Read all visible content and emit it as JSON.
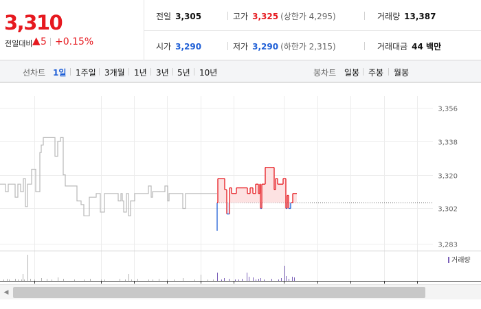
{
  "quote": {
    "price": "3,310",
    "change_label": "전일대비",
    "change_arrow": "▲",
    "change_value": "5",
    "change_pct": "+0.15%",
    "prev_close": {
      "label": "전일",
      "value": "3,305"
    },
    "high": {
      "label": "고가",
      "value": "3,325",
      "sub": "(상한가 4,295)"
    },
    "volume": {
      "label": "거래량",
      "value": "13,387"
    },
    "open": {
      "label": "시가",
      "value": "3,290"
    },
    "low": {
      "label": "저가",
      "value": "3,290",
      "sub": "(하한가 2,315)"
    },
    "amount": {
      "label": "거래대금",
      "value": "44 백만"
    }
  },
  "tabs": {
    "line_chart_label": "선차트",
    "line_periods": [
      "1일",
      "1주일",
      "3개월",
      "1년",
      "3년",
      "5년",
      "10년"
    ],
    "active": "1일",
    "candle_chart_label": "봉차트",
    "candle_periods": [
      "일봉",
      "주봉",
      "월봉"
    ]
  },
  "chart_data": {
    "type": "line",
    "y_ticks": [
      "3,356",
      "3,338",
      "3,320",
      "3,302",
      "3,283"
    ],
    "y_tick_values": [
      3356,
      3338,
      3320,
      3302,
      3283
    ],
    "ylim": [
      3281,
      3362
    ],
    "baseline": 3305,
    "volume_legend": "거래량",
    "colors": {
      "up": "#e6191f",
      "down": "#1f5fd6",
      "prev": "#b8b8b8",
      "up_fill": "#fde2e2",
      "down_fill": "#dde8fb"
    },
    "prev_day_series": [
      [
        0,
        3315
      ],
      [
        8,
        3315
      ],
      [
        8,
        3311
      ],
      [
        12,
        3311
      ],
      [
        12,
        3315
      ],
      [
        22,
        3315
      ],
      [
        22,
        3308
      ],
      [
        26,
        3308
      ],
      [
        26,
        3315
      ],
      [
        30,
        3315
      ],
      [
        30,
        3311
      ],
      [
        34,
        3311
      ],
      [
        34,
        3318
      ],
      [
        37,
        3318
      ],
      [
        37,
        3303
      ],
      [
        40,
        3303
      ],
      [
        40,
        3315
      ],
      [
        46,
        3315
      ],
      [
        46,
        3323
      ],
      [
        52,
        3323
      ],
      [
        52,
        3311
      ],
      [
        58,
        3311
      ],
      [
        58,
        3332
      ],
      [
        60,
        3332
      ],
      [
        60,
        3336
      ],
      [
        63,
        3336
      ],
      [
        63,
        3340
      ],
      [
        80,
        3340
      ],
      [
        80,
        3330
      ],
      [
        84,
        3330
      ],
      [
        84,
        3338
      ],
      [
        88,
        3338
      ],
      [
        88,
        3340
      ],
      [
        92,
        3340
      ],
      [
        92,
        3320
      ],
      [
        95,
        3320
      ],
      [
        95,
        3314
      ],
      [
        112,
        3314
      ],
      [
        112,
        3306
      ],
      [
        118,
        3306
      ],
      [
        118,
        3304
      ],
      [
        122,
        3304
      ],
      [
        122,
        3298
      ],
      [
        130,
        3298
      ],
      [
        130,
        3308
      ],
      [
        140,
        3308
      ],
      [
        140,
        3310
      ],
      [
        146,
        3310
      ],
      [
        146,
        3300
      ],
      [
        152,
        3300
      ],
      [
        152,
        3310
      ],
      [
        172,
        3310
      ],
      [
        172,
        3306
      ],
      [
        176,
        3306
      ],
      [
        176,
        3310
      ],
      [
        178,
        3310
      ],
      [
        178,
        3306
      ],
      [
        180,
        3306
      ],
      [
        180,
        3300
      ],
      [
        184,
        3300
      ],
      [
        184,
        3310
      ],
      [
        187,
        3310
      ],
      [
        187,
        3298
      ],
      [
        190,
        3298
      ],
      [
        190,
        3306
      ],
      [
        196,
        3306
      ],
      [
        196,
        3310
      ],
      [
        216,
        3310
      ],
      [
        216,
        3314
      ],
      [
        220,
        3314
      ],
      [
        220,
        3308
      ],
      [
        222,
        3308
      ],
      [
        222,
        3311
      ],
      [
        240,
        3311
      ],
      [
        240,
        3314
      ],
      [
        244,
        3314
      ],
      [
        244,
        3306
      ],
      [
        246,
        3306
      ],
      [
        246,
        3310
      ],
      [
        266,
        3310
      ],
      [
        266,
        3302
      ],
      [
        270,
        3302
      ],
      [
        270,
        3310
      ],
      [
        316,
        3310
      ]
    ],
    "today_series": [
      [
        316,
        3290
      ],
      [
        316,
        3305
      ],
      [
        317,
        3305
      ],
      [
        317,
        3318
      ],
      [
        327,
        3318
      ],
      [
        327,
        3312
      ],
      [
        330,
        3312
      ],
      [
        330,
        3299
      ],
      [
        334,
        3299
      ],
      [
        334,
        3313
      ],
      [
        337,
        3313
      ],
      [
        337,
        3310
      ],
      [
        344,
        3310
      ],
      [
        344,
        3313
      ],
      [
        360,
        3313
      ],
      [
        360,
        3310
      ],
      [
        364,
        3310
      ],
      [
        364,
        3313
      ],
      [
        368,
        3313
      ],
      [
        368,
        3310
      ],
      [
        372,
        3310
      ],
      [
        372,
        3315
      ],
      [
        376,
        3315
      ],
      [
        376,
        3310
      ],
      [
        378,
        3310
      ],
      [
        378,
        3315
      ],
      [
        379,
        3315
      ],
      [
        379,
        3302
      ],
      [
        381,
        3302
      ],
      [
        381,
        3315
      ],
      [
        386,
        3315
      ],
      [
        386,
        3324
      ],
      [
        399,
        3324
      ],
      [
        399,
        3312
      ],
      [
        401,
        3312
      ],
      [
        401,
        3318
      ],
      [
        404,
        3318
      ],
      [
        404,
        3315
      ],
      [
        412,
        3315
      ],
      [
        412,
        3318
      ],
      [
        416,
        3318
      ],
      [
        416,
        3302
      ],
      [
        418,
        3302
      ],
      [
        418,
        3309
      ],
      [
        420,
        3309
      ],
      [
        420,
        3302
      ],
      [
        423,
        3302
      ],
      [
        423,
        3305
      ],
      [
        426,
        3305
      ],
      [
        426,
        3310
      ],
      [
        432,
        3310
      ]
    ],
    "prev_volume": [
      [
        5,
        2
      ],
      [
        10,
        3
      ],
      [
        13,
        2
      ],
      [
        22,
        3
      ],
      [
        26,
        2
      ],
      [
        31,
        2
      ],
      [
        33,
        10
      ],
      [
        35,
        2
      ],
      [
        40,
        38
      ],
      [
        44,
        3
      ],
      [
        50,
        2
      ],
      [
        60,
        4
      ],
      [
        68,
        3
      ],
      [
        75,
        2
      ],
      [
        84,
        5
      ],
      [
        92,
        3
      ],
      [
        108,
        2
      ],
      [
        122,
        2
      ],
      [
        131,
        3
      ],
      [
        147,
        2
      ],
      [
        152,
        2
      ],
      [
        174,
        3
      ],
      [
        182,
        2
      ],
      [
        187,
        10
      ],
      [
        191,
        2
      ],
      [
        200,
        3
      ],
      [
        216,
        2
      ],
      [
        222,
        2
      ],
      [
        231,
        3
      ],
      [
        243,
        2
      ],
      [
        253,
        2
      ],
      [
        266,
        4
      ],
      [
        283,
        2
      ],
      [
        292,
        9
      ],
      [
        302,
        2
      ],
      [
        310,
        2
      ]
    ],
    "today_volume": [
      [
        316,
        12
      ],
      [
        322,
        2
      ],
      [
        326,
        4
      ],
      [
        333,
        3
      ],
      [
        342,
        2
      ],
      [
        347,
        2
      ],
      [
        352,
        3
      ],
      [
        359,
        12
      ],
      [
        362,
        6
      ],
      [
        368,
        5
      ],
      [
        372,
        2
      ],
      [
        376,
        3
      ],
      [
        379,
        4
      ],
      [
        384,
        2
      ],
      [
        395,
        3
      ],
      [
        405,
        2
      ],
      [
        409,
        4
      ],
      [
        414,
        22
      ],
      [
        416,
        7
      ],
      [
        420,
        3
      ],
      [
        425,
        6
      ],
      [
        428,
        5
      ]
    ]
  }
}
